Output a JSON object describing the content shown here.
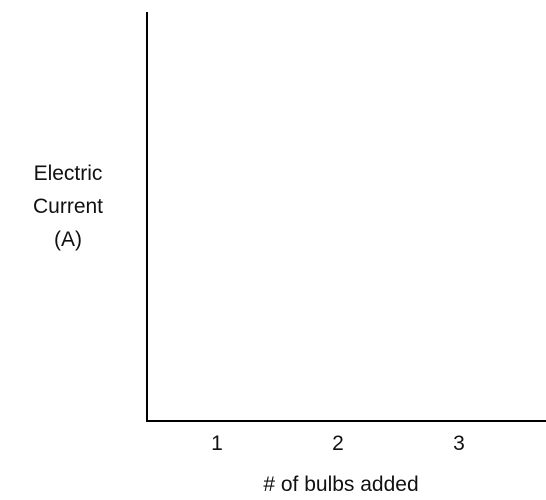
{
  "chart_data": {
    "type": "line",
    "title": "",
    "xlabel": "# of bulbs added",
    "ylabel_lines": [
      "Electric",
      "Current",
      "(A)"
    ],
    "x_categories": [
      "1",
      "2",
      "3"
    ],
    "series": [],
    "grid": false,
    "legend": "none"
  }
}
